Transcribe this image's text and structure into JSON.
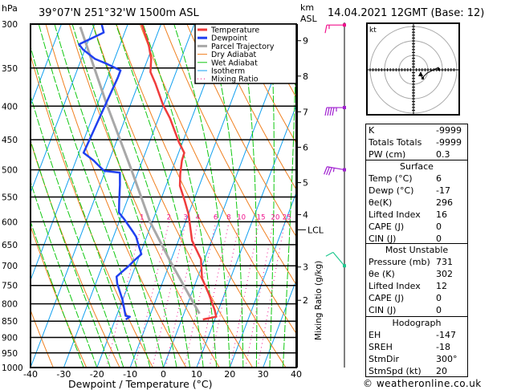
{
  "header": {
    "hpa_label": "hPa",
    "location": "39°07'N 251°32'W 1500m ASL",
    "km_label": "km",
    "asl_label": "ASL",
    "datetime": "14.04.2021 12GMT (Base: 12)"
  },
  "chart_data": {
    "type": "line",
    "title": "39°07'N 251°32'W 1500m ASL",
    "xlabel": "Dewpoint / Temperature (°C)",
    "ylabel": "hPa",
    "xlim": [
      -40,
      40
    ],
    "ylim": [
      1000,
      300
    ],
    "x_ticks": [
      "-40",
      "-30",
      "-20",
      "-10",
      "0",
      "10",
      "20",
      "30",
      "40"
    ],
    "pressure_ticks": [
      "300",
      "350",
      "400",
      "450",
      "500",
      "550",
      "600",
      "650",
      "700",
      "750",
      "800",
      "850",
      "900",
      "950",
      "1000"
    ],
    "height_axis_label": "Mixing Ratio (g/kg)",
    "height_ticks": [
      {
        "km": "9",
        "p": 318
      },
      {
        "km": "8",
        "p": 360
      },
      {
        "km": "7",
        "p": 408
      },
      {
        "km": "6",
        "p": 462
      },
      {
        "km": "5",
        "p": 523
      },
      {
        "km": "4",
        "p": 585
      },
      {
        "km": "3",
        "p": 703
      },
      {
        "km": "2",
        "p": 790
      }
    ],
    "lcl": {
      "label": "LCL",
      "p": 617
    },
    "mixing_ratio_labels": [
      "1",
      "2",
      "3",
      "4",
      "6",
      "8",
      "10",
      "15",
      "20",
      "25"
    ],
    "legend": [
      {
        "label": "Temperature",
        "color": "#f03c3c",
        "style": "thick"
      },
      {
        "label": "Dewpoint",
        "color": "#2040f0",
        "style": "thick"
      },
      {
        "label": "Parcel Trajectory",
        "color": "#a8a8a8",
        "style": "thick"
      },
      {
        "label": "Dry Adiabat",
        "color": "#f08020",
        "style": "thin"
      },
      {
        "label": "Wet Adiabat",
        "color": "#10c810",
        "style": "thin"
      },
      {
        "label": "Isotherm",
        "color": "#10a0f0",
        "style": "thin"
      },
      {
        "label": "Mixing Ratio",
        "color": "#f0108c",
        "style": "dotted"
      }
    ],
    "series": [
      {
        "name": "Temperature",
        "color": "#f03c3c",
        "points": [
          [
            845,
            6.4
          ],
          [
            837,
            10.1
          ],
          [
            818,
            8.9
          ],
          [
            773,
            5.3
          ],
          [
            731,
            1.4
          ],
          [
            684,
            -1.1
          ],
          [
            641,
            -5.9
          ],
          [
            618,
            -7.5
          ],
          [
            584,
            -10.0
          ],
          [
            557,
            -12.7
          ],
          [
            529,
            -15.8
          ],
          [
            507,
            -17.1
          ],
          [
            484,
            -18.1
          ],
          [
            471,
            -18.3
          ],
          [
            454,
            -21.1
          ],
          [
            417,
            -26.6
          ],
          [
            398,
            -30.2
          ],
          [
            369,
            -35.0
          ],
          [
            355,
            -37.7
          ],
          [
            339,
            -39.0
          ],
          [
            323,
            -41.3
          ],
          [
            300,
            -45.8
          ]
        ]
      },
      {
        "name": "Dewpoint",
        "color": "#2040f0",
        "points": [
          [
            845,
            -16.8
          ],
          [
            837,
            -15.9
          ],
          [
            834,
            -17.3
          ],
          [
            788,
            -20.1
          ],
          [
            745,
            -23.5
          ],
          [
            727,
            -24.5
          ],
          [
            701,
            -22.1
          ],
          [
            688,
            -21.1
          ],
          [
            672,
            -19.6
          ],
          [
            653,
            -21.3
          ],
          [
            632,
            -23.2
          ],
          [
            620,
            -24.9
          ],
          [
            595,
            -28.7
          ],
          [
            581,
            -31.1
          ],
          [
            557,
            -32.4
          ],
          [
            527,
            -34.0
          ],
          [
            505,
            -35.4
          ],
          [
            502,
            -40.3
          ],
          [
            498,
            -41.3
          ],
          [
            484,
            -44.7
          ],
          [
            471,
            -48.6
          ],
          [
            450,
            -48.3
          ],
          [
            402,
            -47.6
          ],
          [
            362,
            -46.9
          ],
          [
            353,
            -46.9
          ],
          [
            345,
            -51.7
          ],
          [
            339,
            -55.9
          ],
          [
            328,
            -60.6
          ],
          [
            322,
            -62.4
          ],
          [
            309,
            -56.3
          ],
          [
            300,
            -57.9
          ]
        ]
      },
      {
        "name": "Parcel Trajectory",
        "color": "#a8a8a8",
        "points": [
          [
            828,
            4.7
          ],
          [
            688,
            -10.2
          ],
          [
            600,
            -20.7
          ],
          [
            498,
            -32.5
          ],
          [
            398,
            -47.1
          ],
          [
            303,
            -64.0
          ]
        ]
      }
    ]
  },
  "wind_barbs": [
    {
      "p": 301,
      "color": "#f0108c",
      "dir_deg": 270,
      "speed_kt": 15
    },
    {
      "p": 402,
      "color": "#a020d0",
      "dir_deg": 270,
      "speed_kt": 45
    },
    {
      "p": 500,
      "color": "#a020d0",
      "dir_deg": 280,
      "speed_kt": 35
    },
    {
      "p": 700,
      "color": "#20c890",
      "dir_deg": 320,
      "speed_kt": 10
    }
  ],
  "hodograph": {
    "unit_label": "kt"
  },
  "indices": {
    "top": [
      {
        "label": "K",
        "value": "-9999"
      },
      {
        "label": "Totals Totals",
        "value": "-9999"
      },
      {
        "label": "PW (cm)",
        "value": "0.3"
      }
    ],
    "surface": {
      "title": "Surface",
      "rows": [
        {
          "label": "Temp (°C)",
          "value": "6"
        },
        {
          "label": "Dewp (°C)",
          "value": "-17"
        },
        {
          "label": "θe(K)",
          "value": "296"
        },
        {
          "label": "Lifted Index",
          "value": "16"
        },
        {
          "label": "CAPE (J)",
          "value": "0"
        },
        {
          "label": "CIN (J)",
          "value": "0"
        }
      ]
    },
    "most_unstable": {
      "title": "Most Unstable",
      "rows": [
        {
          "label": "Pressure (mb)",
          "value": "731"
        },
        {
          "label": "θe (K)",
          "value": "302"
        },
        {
          "label": "Lifted Index",
          "value": "12"
        },
        {
          "label": "CAPE (J)",
          "value": "0"
        },
        {
          "label": "CIN (J)",
          "value": "0"
        }
      ]
    },
    "hodograph": {
      "title": "Hodograph",
      "rows": [
        {
          "label": "EH",
          "value": "-147"
        },
        {
          "label": "SREH",
          "value": "-18"
        },
        {
          "label": "StmDir",
          "value": "300°"
        },
        {
          "label": "StmSpd (kt)",
          "value": "20"
        }
      ]
    }
  },
  "copyright": "© weatheronline.co.uk"
}
